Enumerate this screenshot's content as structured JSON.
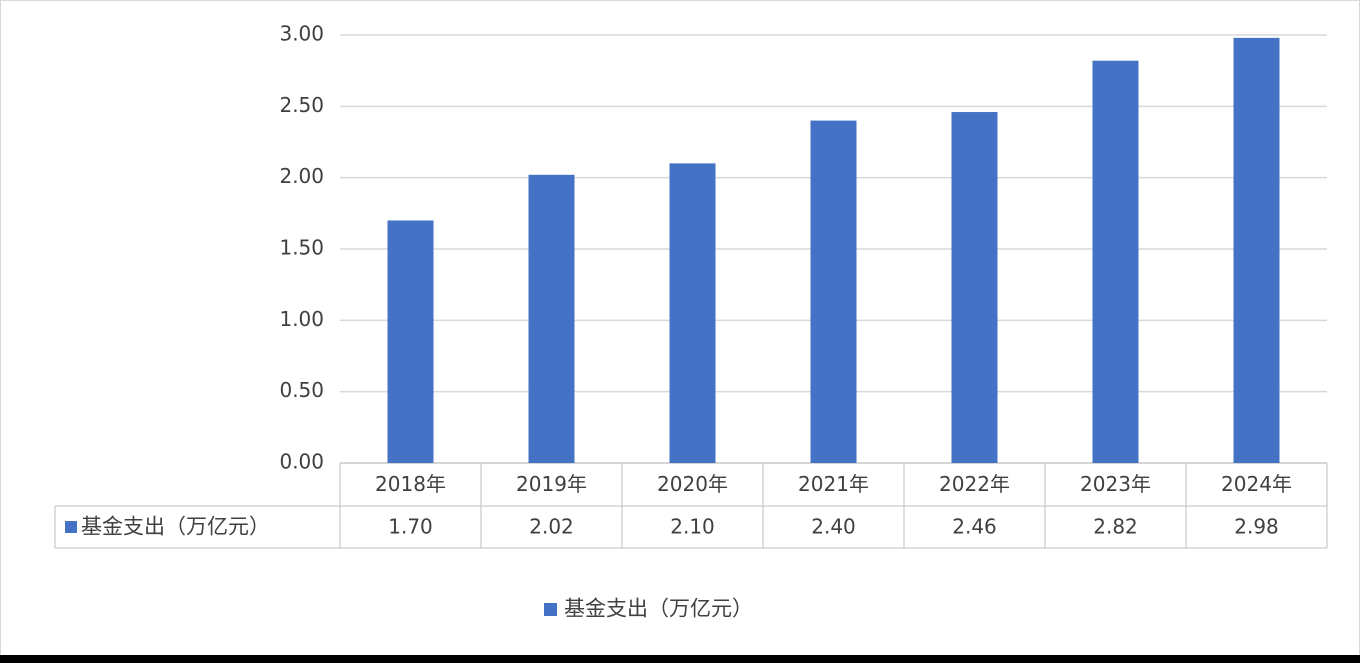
{
  "chart_data": {
    "type": "bar",
    "categories": [
      "2018年",
      "2019年",
      "2020年",
      "2021年",
      "2022年",
      "2023年",
      "2024年"
    ],
    "series": [
      {
        "name": "基金支出（万亿元）",
        "color": "#4472c4",
        "values": [
          1.7,
          2.02,
          2.1,
          2.4,
          2.46,
          2.82,
          2.98
        ],
        "value_labels": [
          "1.70",
          "2.02",
          "2.10",
          "2.40",
          "2.46",
          "2.82",
          "2.98"
        ]
      }
    ],
    "ylim": [
      0,
      3
    ],
    "yticks": [
      {
        "value": 0,
        "label": "0.00"
      },
      {
        "value": 0.5,
        "label": "0.50"
      },
      {
        "value": 1,
        "label": "1.00"
      },
      {
        "value": 1.5,
        "label": "1.50"
      },
      {
        "value": 2,
        "label": "2.00"
      },
      {
        "value": 2.5,
        "label": "2.50"
      },
      {
        "value": 3,
        "label": "3.00"
      }
    ],
    "grid": true,
    "legend": "bottom"
  }
}
